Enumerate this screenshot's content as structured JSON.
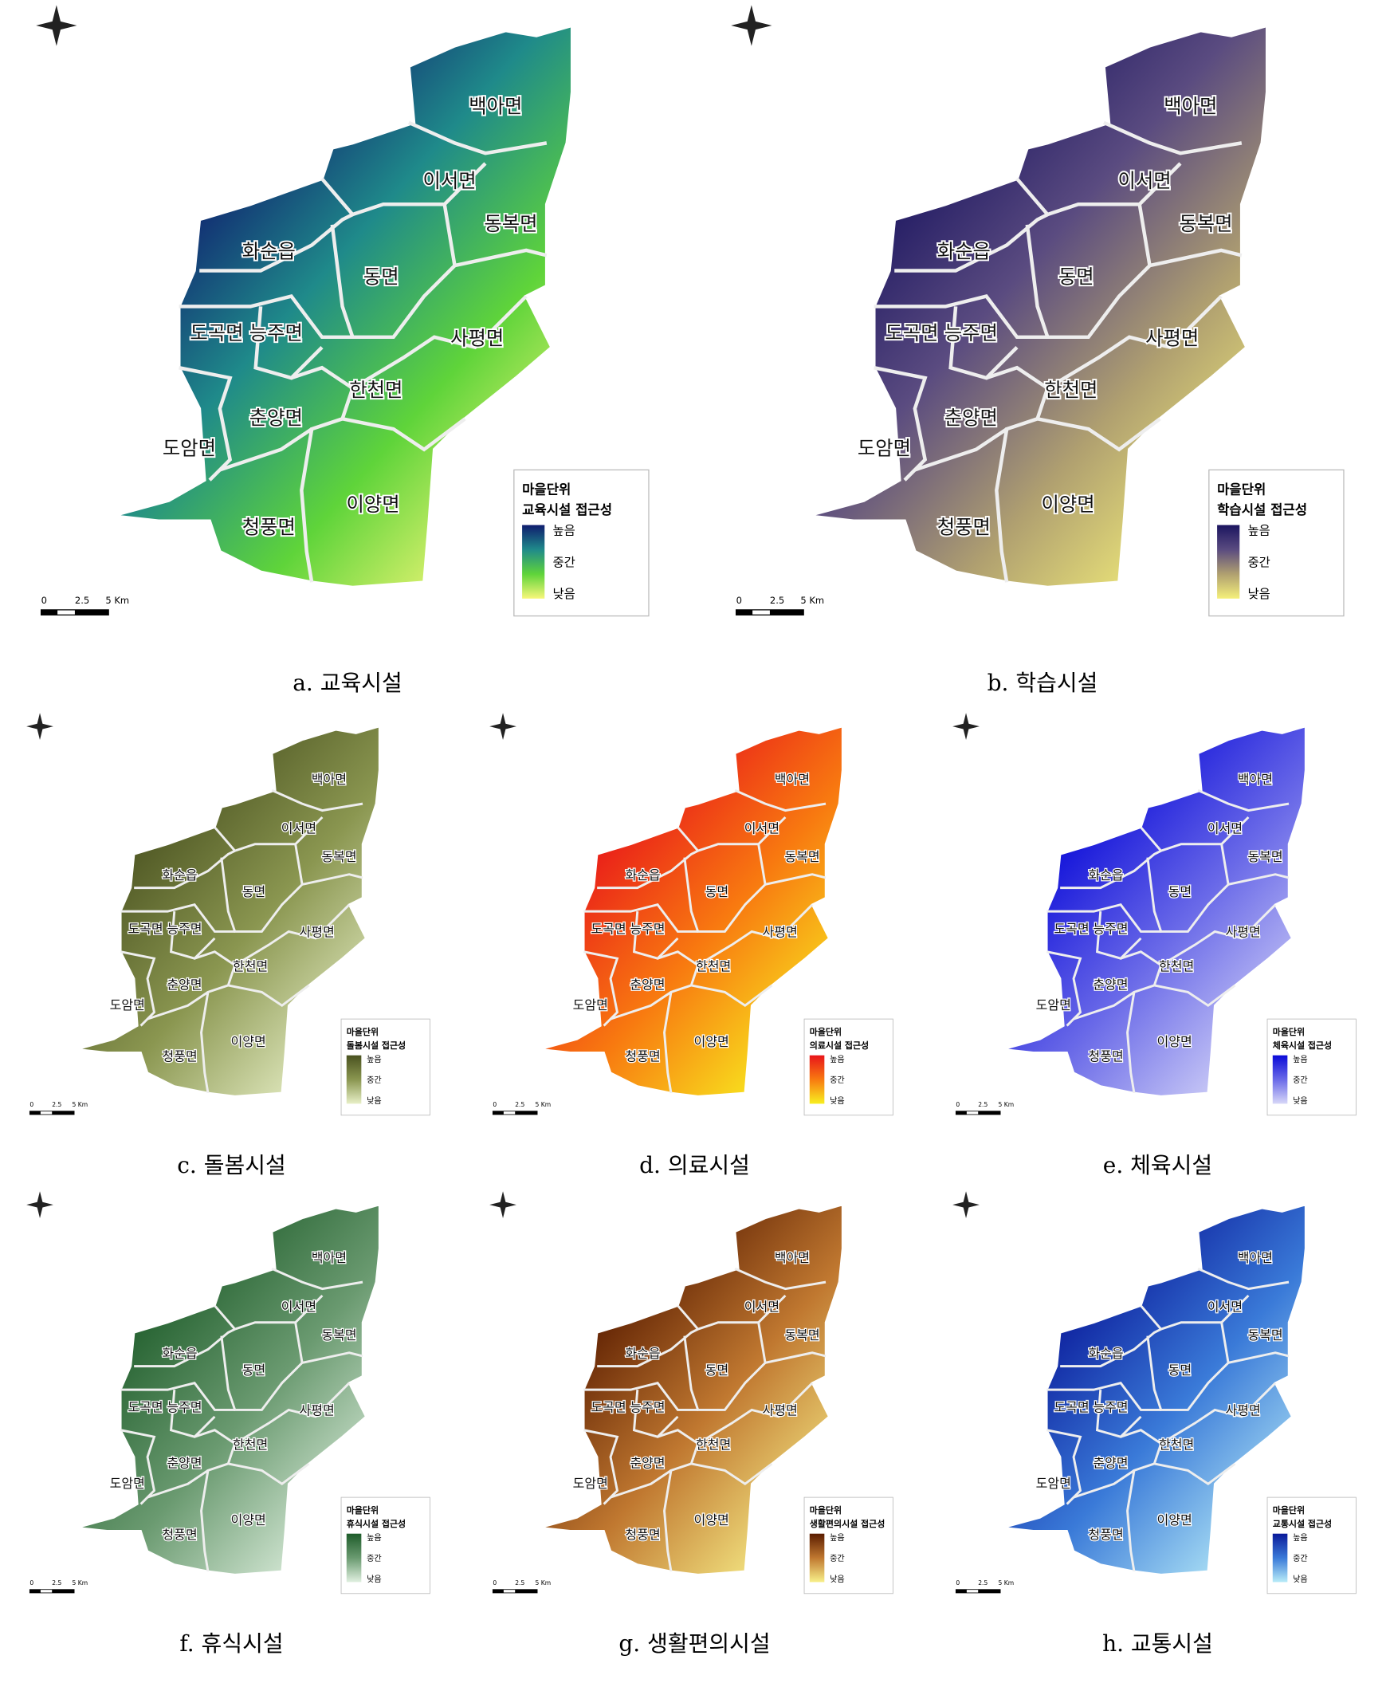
{
  "panels": [
    {
      "caption": "a. 교육시설",
      "legend": {
        "title": [
          "마을단위",
          "교육시설 접근성"
        ],
        "labels": [
          "높음",
          "중간",
          "낮음"
        ],
        "colors": [
          "#0f1c6e",
          "#1f8a8a",
          "#5fd43a",
          "#f7f77a"
        ]
      },
      "scale": [
        "0",
        "2.5",
        "5 Km"
      ],
      "regions": [
        "백아면",
        "이서면",
        "동복면",
        "화순읍",
        "동면",
        "도곡면",
        "능주면",
        "사평면",
        "한천면",
        "춘양면",
        "도암면",
        "청풍면",
        "이양면"
      ]
    },
    {
      "caption": "b. 학습시설",
      "legend": {
        "title": [
          "마을단위",
          "학습시설 접근성"
        ],
        "labels": [
          "높음",
          "중간",
          "낮음"
        ],
        "colors": [
          "#1b1560",
          "#5a4b80",
          "#b0a070",
          "#f5f07a"
        ]
      },
      "scale": [
        "0",
        "2.5",
        "5 Km"
      ],
      "regions": [
        "백아면",
        "이서면",
        "동복면",
        "화순읍",
        "동면",
        "도곡면",
        "능주면",
        "사평면",
        "한천면",
        "춘양면",
        "도암면",
        "청풍면",
        "이양면"
      ]
    },
    {
      "caption": "c. 돌봄시설",
      "legend": {
        "title": [
          "마을단위",
          "돌봄시설 접근성"
        ],
        "labels": [
          "높음",
          "중간",
          "낮음"
        ],
        "colors": [
          "#4a5220",
          "#8a9650",
          "#e8f0c8"
        ]
      },
      "scale": [
        "0",
        "2.5",
        "5 Km"
      ],
      "regions": [
        "백아면",
        "이서면",
        "동복면",
        "화순읍",
        "동면",
        "도곡면",
        "능주면",
        "사평면",
        "한천면",
        "춘양면",
        "도암면",
        "청풍면",
        "이양면"
      ]
    },
    {
      "caption": "d. 의료시설",
      "legend": {
        "title": [
          "마을단위",
          "의료시설 접근성"
        ],
        "labels": [
          "높음",
          "중간",
          "낮음"
        ],
        "colors": [
          "#e8141a",
          "#f87a10",
          "#f8f020"
        ]
      },
      "scale": [
        "0",
        "2.5",
        "5 Km"
      ],
      "regions": [
        "백아면",
        "이서면",
        "동복면",
        "화순읍",
        "동면",
        "도곡면",
        "능주면",
        "사평면",
        "한천면",
        "춘양면",
        "도암면",
        "청풍면",
        "이양면"
      ]
    },
    {
      "caption": "e. 체육시설",
      "legend": {
        "title": [
          "마을단위",
          "체육시설 접근성"
        ],
        "labels": [
          "높음",
          "중간",
          "낮음"
        ],
        "colors": [
          "#0a0ad8",
          "#6a6ae8",
          "#d8d8f8"
        ]
      },
      "scale": [
        "0",
        "2.5",
        "5 Km"
      ],
      "regions": [
        "백아면",
        "이서면",
        "동복면",
        "화순읍",
        "동면",
        "도곡면",
        "능주면",
        "사평면",
        "한천면",
        "춘양면",
        "도암면",
        "청풍면",
        "이양면"
      ]
    },
    {
      "caption": "f. 휴식시설",
      "legend": {
        "title": [
          "마을단위",
          "휴식시설 접근성"
        ],
        "labels": [
          "높음",
          "중간",
          "낮음"
        ],
        "colors": [
          "#1e5c2a",
          "#6a9a70",
          "#e0f0e0"
        ]
      },
      "scale": [
        "0",
        "2.5",
        "5 Km"
      ],
      "regions": [
        "백아면",
        "이서면",
        "동복면",
        "화순읍",
        "동면",
        "도곡면",
        "능주면",
        "사평면",
        "한천면",
        "춘양면",
        "도암면",
        "청풍면",
        "이양면"
      ]
    },
    {
      "caption": "g. 생활편의시설",
      "legend": {
        "title": [
          "마을단위",
          "생활편의시설 접근성"
        ],
        "labels": [
          "높음",
          "중간",
          "낮음"
        ],
        "colors": [
          "#5a1c00",
          "#c07830",
          "#f8f08a"
        ]
      },
      "scale": [
        "0",
        "2.5",
        "5 Km"
      ],
      "regions": [
        "백아면",
        "이서면",
        "동복면",
        "화순읍",
        "동면",
        "도곡면",
        "능주면",
        "사평면",
        "한천면",
        "춘양면",
        "도암면",
        "청풍면",
        "이양면"
      ]
    },
    {
      "caption": "h. 교통시설",
      "legend": {
        "title": [
          "마을단위",
          "교통시설 접근성"
        ],
        "labels": [
          "높음",
          "중간",
          "낮음"
        ],
        "colors": [
          "#0a1a9a",
          "#3a7ad8",
          "#b8ecf8"
        ]
      },
      "scale": [
        "0",
        "2.5",
        "5 Km"
      ],
      "regions": [
        "백아면",
        "이서면",
        "동복면",
        "화순읍",
        "동면",
        "도곡면",
        "능주면",
        "사평면",
        "한천면",
        "춘양면",
        "도암면",
        "청풍면",
        "이양면"
      ]
    }
  ]
}
